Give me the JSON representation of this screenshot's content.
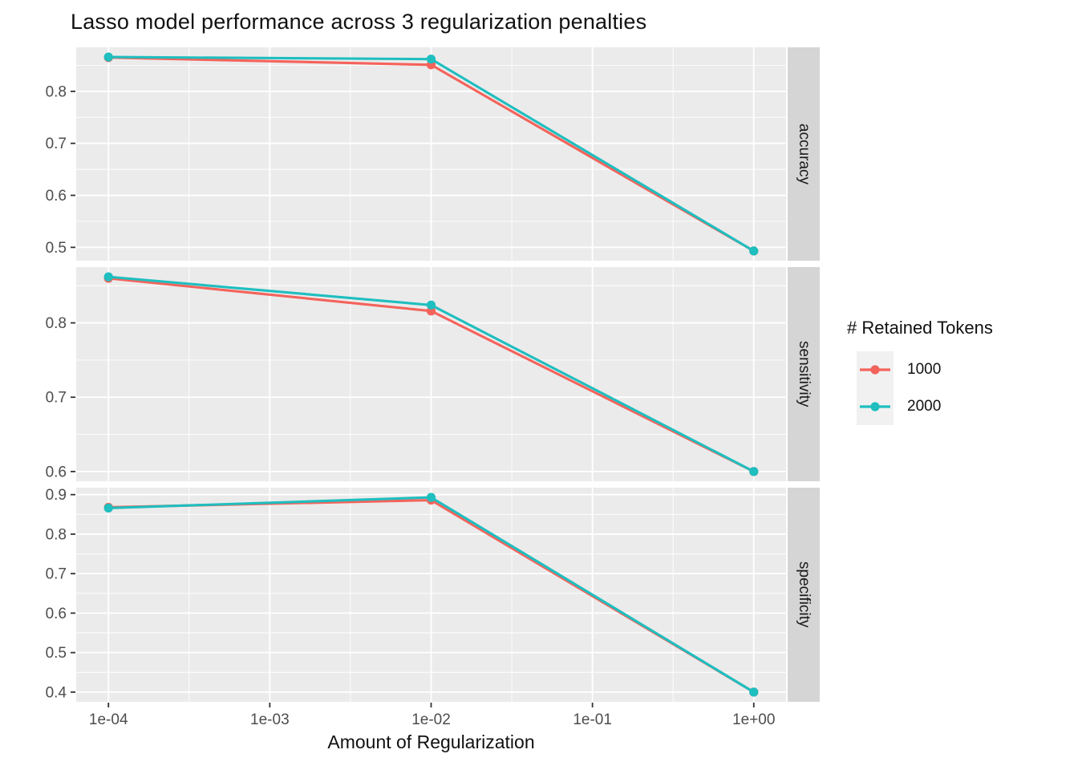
{
  "title": "Lasso model performance across 3 regularization penalties",
  "x_axis": {
    "label": "Amount of Regularization",
    "tick_labels": [
      "1e-04",
      "1e-03",
      "1e-02",
      "1e-01",
      "1e+00"
    ]
  },
  "legend": {
    "title": "# Retained Tokens",
    "entries": [
      {
        "label": "1000",
        "color": "#f4635b"
      },
      {
        "label": "2000",
        "color": "#1fbebf"
      }
    ]
  },
  "colors": {
    "panel_background": "#ebebeb",
    "gridline": "#ffffff",
    "strip_background": "#d5d5d5",
    "tick_text": "#4d4d4d",
    "tick_mark": "#333333",
    "series_1000": "#f4635b",
    "series_2000": "#1fbebf"
  },
  "chart_data": {
    "type": "line",
    "title": "Lasso model performance across 3 regularization penalties",
    "xlabel": "Amount of Regularization",
    "x_scale": "log10",
    "x": [
      0.0001,
      0.01,
      1
    ],
    "x_tick_labels": [
      "1e-04",
      "1e-03",
      "1e-02",
      "1e-01",
      "1e+00"
    ],
    "x_tick_values": [
      0.0001,
      0.001,
      0.01,
      0.1,
      1
    ],
    "legend_title": "# Retained Tokens",
    "legend_position": "right",
    "grid": "on",
    "series_order": [
      "1000",
      "2000"
    ],
    "series_colors": {
      "1000": "#f4635b",
      "2000": "#1fbebf"
    },
    "facets": [
      {
        "label": "accuracy",
        "y_ticks": [
          0.5,
          0.6,
          0.7,
          0.8
        ],
        "series": [
          {
            "name": "1000",
            "values": [
              0.865,
              0.851,
              0.493
            ]
          },
          {
            "name": "2000",
            "values": [
              0.866,
              0.862,
              0.493
            ]
          }
        ]
      },
      {
        "label": "sensitivity",
        "y_ticks": [
          0.6,
          0.7,
          0.8
        ],
        "series": [
          {
            "name": "1000",
            "values": [
              0.86,
              0.816,
              0.6
            ]
          },
          {
            "name": "2000",
            "values": [
              0.862,
              0.824,
              0.6
            ]
          }
        ]
      },
      {
        "label": "specificity",
        "y_ticks": [
          0.4,
          0.5,
          0.6,
          0.7,
          0.8,
          0.9
        ],
        "series": [
          {
            "name": "1000",
            "values": [
              0.868,
              0.886,
              0.4
            ]
          },
          {
            "name": "2000",
            "values": [
              0.866,
              0.893,
              0.4
            ]
          }
        ]
      }
    ]
  }
}
